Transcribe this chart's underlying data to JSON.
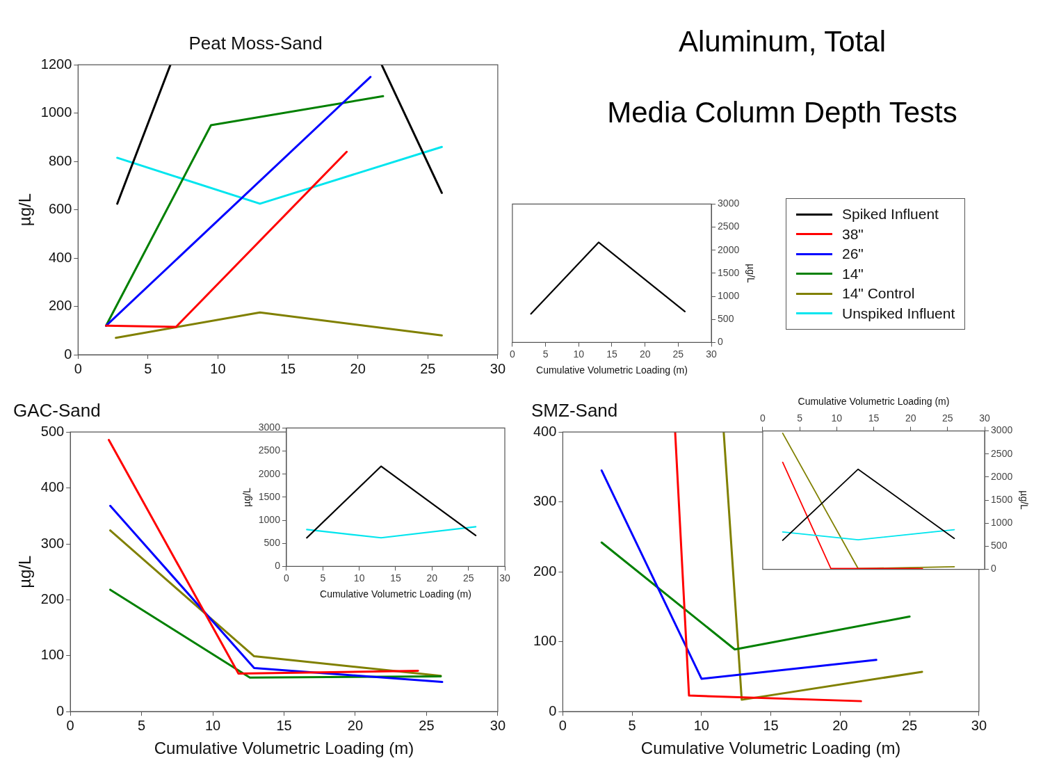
{
  "chart_data": [
    {
      "type": "line",
      "title": "Peat Moss-Sand",
      "ylabel": "µg/L",
      "xlim": [
        0,
        30
      ],
      "xticks": [
        0,
        5,
        10,
        15,
        20,
        25,
        30
      ],
      "ylim": [
        0,
        1200
      ],
      "yticks": [
        0,
        200,
        400,
        600,
        800,
        1000,
        1200
      ],
      "legend": "right",
      "series": [
        {
          "name": "Spiked Influent",
          "color": "#000000",
          "x": [
            2.8,
            6.6,
            13,
            21.7,
            26
          ],
          "values": [
            625,
            1200,
            null,
            1200,
            670
          ]
        },
        {
          "name": "38\"",
          "color": "#ff0000",
          "x": [
            2,
            7,
            19.2
          ],
          "values": [
            120,
            115,
            840
          ]
        },
        {
          "name": "26\"",
          "color": "#0000ff",
          "x": [
            2,
            20.9
          ],
          "values": [
            120,
            1150
          ]
        },
        {
          "name": "14\"",
          "color": "#008000",
          "x": [
            2,
            9.5,
            21.8
          ],
          "values": [
            120,
            950,
            1070
          ]
        },
        {
          "name": "14\" Control",
          "color": "#808000",
          "x": [
            2.7,
            13,
            26
          ],
          "values": [
            70,
            175,
            80
          ]
        },
        {
          "name": "Unspiked Influent",
          "color": "#00e5ee",
          "x": [
            2.8,
            13,
            26
          ],
          "values": [
            815,
            625,
            860
          ]
        }
      ]
    },
    {
      "type": "line",
      "xlabel": "Cumulative Volumetric Loading (m)",
      "y2label": "µg/L",
      "xlim": [
        0,
        30
      ],
      "xticks": [
        0,
        5,
        10,
        15,
        20,
        25,
        30
      ],
      "y2lim": [
        0,
        3000
      ],
      "y2ticks": [
        0,
        500,
        1000,
        1500,
        2000,
        2500,
        3000
      ],
      "series": [
        {
          "color": "#000000",
          "axis": "y2",
          "x": [
            2.8,
            13,
            26
          ],
          "values": [
            620,
            2170,
            670
          ]
        }
      ]
    },
    {
      "type": "line",
      "title": "GAC-Sand",
      "xlabel": "Cumulative Volumetric Loading (m)",
      "ylabel": "µg/L",
      "xlim": [
        0,
        30
      ],
      "xticks": [
        0,
        5,
        10,
        15,
        20,
        25,
        30
      ],
      "ylim": [
        0,
        500
      ],
      "yticks": [
        0,
        100,
        200,
        300,
        400,
        500
      ],
      "series": [
        {
          "color": "#ff0000",
          "x": [
            2.7,
            11.8,
            24.4
          ],
          "values": [
            486,
            68,
            73
          ]
        },
        {
          "color": "#0000ff",
          "x": [
            2.8,
            12.9,
            26.1
          ],
          "values": [
            368,
            78,
            53
          ]
        },
        {
          "color": "#008000",
          "x": [
            2.8,
            12.6,
            26
          ],
          "values": [
            218,
            61,
            63
          ]
        },
        {
          "color": "#808000",
          "x": [
            2.8,
            12.9,
            26
          ],
          "values": [
            324,
            99,
            64
          ]
        }
      ]
    },
    {
      "type": "line",
      "xlabel": "Cumulative Volumetric Loading (m)",
      "ylabel": "µg/L",
      "xlim": [
        0,
        30
      ],
      "xticks": [
        0,
        5,
        10,
        15,
        20,
        25,
        30
      ],
      "ylim": [
        0,
        3000
      ],
      "yticks": [
        0,
        500,
        1000,
        1500,
        2000,
        2500,
        3000
      ],
      "series": [
        {
          "color": "#000000",
          "x": [
            2.8,
            13,
            26
          ],
          "values": [
            620,
            2170,
            670
          ]
        },
        {
          "color": "#00e5ee",
          "x": [
            2.8,
            13,
            26
          ],
          "values": [
            800,
            620,
            860
          ]
        }
      ]
    },
    {
      "type": "line",
      "title": "SMZ-Sand",
      "xlabel": "Cumulative Volumetric Loading (m)",
      "xlim": [
        0,
        30
      ],
      "xticks": [
        0,
        5,
        10,
        15,
        20,
        25,
        30
      ],
      "ylim": [
        0,
        400
      ],
      "yticks": [
        0,
        100,
        200,
        300,
        400
      ],
      "series": [
        {
          "color": "#ff0000",
          "x": [
            8.1,
            9.1,
            21.5
          ],
          "values": [
            400,
            23,
            15
          ]
        },
        {
          "color": "#0000ff",
          "x": [
            2.8,
            10,
            22.6
          ],
          "values": [
            345,
            47,
            74
          ]
        },
        {
          "color": "#008000",
          "x": [
            2.8,
            12.4,
            25
          ],
          "values": [
            242,
            89,
            136
          ]
        },
        {
          "color": "#808000",
          "x": [
            11.6,
            12.9,
            25.9
          ],
          "values": [
            400,
            17,
            57
          ]
        }
      ]
    },
    {
      "type": "line",
      "xlabel": "Cumulative Volumetric Loading (m)",
      "y2label": "µg/L",
      "xlim": [
        0,
        30
      ],
      "xticks": [
        0,
        5,
        10,
        15,
        20,
        25,
        30
      ],
      "y2lim": [
        0,
        3000
      ],
      "y2ticks": [
        0,
        500,
        1000,
        1500,
        2000,
        2500,
        3000
      ],
      "series": [
        {
          "color": "#000000",
          "axis": "y2",
          "x": [
            2.7,
            12.9,
            25.9
          ],
          "values": [
            630,
            2170,
            670
          ]
        },
        {
          "color": "#00e5ee",
          "axis": "y2",
          "x": [
            2.7,
            12.9,
            25.9
          ],
          "values": [
            810,
            640,
            860
          ]
        },
        {
          "color": "#ff0000",
          "axis": "y2",
          "x": [
            2.7,
            9.2,
            21.6
          ],
          "values": [
            2320,
            23,
            15
          ]
        },
        {
          "color": "#808000",
          "axis": "y2",
          "x": [
            2.7,
            12.9,
            25.9
          ],
          "values": [
            2950,
            17,
            57
          ]
        }
      ]
    },
    {
      "type": "other",
      "title": "Aluminum, Total",
      "subtitle": "Media Column Depth Tests"
    }
  ]
}
